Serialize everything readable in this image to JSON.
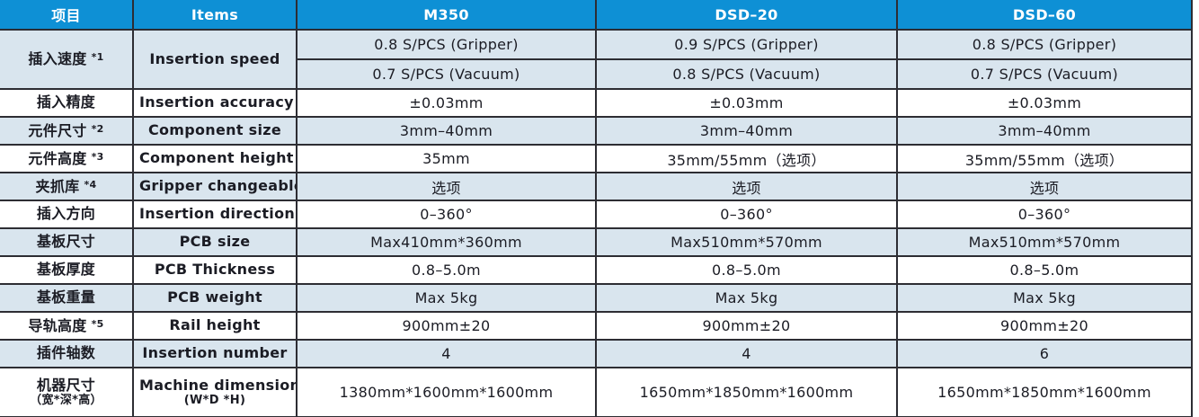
{
  "table": {
    "header": {
      "items_zh": "项目",
      "items_en": "Items",
      "models": [
        "M350",
        "DSD–20",
        "DSD–60"
      ]
    },
    "rows": [
      {
        "zh": "插入速度",
        "note": "*1",
        "en": "Insertion speed",
        "two_line_values": true,
        "values": [
          [
            "0.8 S/PCS (Gripper)",
            "0.7 S/PCS (Vacuum)"
          ],
          [
            "0.9 S/PCS (Gripper)",
            "0.8 S/PCS (Vacuum)"
          ],
          [
            "0.8 S/PCS (Gripper)",
            "0.7 S/PCS (Vacuum)"
          ]
        ]
      },
      {
        "zh": "插入精度",
        "en": "Insertion accuracy",
        "values": [
          "±0.03mm",
          "±0.03mm",
          "±0.03mm"
        ]
      },
      {
        "zh": "元件尺寸",
        "note": "*2",
        "en": "Component size",
        "values": [
          "3mm–40mm",
          "3mm–40mm",
          "3mm–40mm"
        ]
      },
      {
        "zh": "元件高度",
        "note": "*3",
        "en": "Component height",
        "values": [
          "35mm",
          "35mm/55mm（选项）",
          "35mm/55mm（选项）"
        ]
      },
      {
        "zh": "夹抓库",
        "note": "*4",
        "en": "Gripper changeable",
        "values": [
          "选项",
          "选项",
          "选项"
        ]
      },
      {
        "zh": "插入方向",
        "en": "Insertion direction",
        "values": [
          "0–360°",
          "0–360°",
          "0–360°"
        ]
      },
      {
        "zh": "基板尺寸",
        "en": "PCB size",
        "values": [
          "Max410mm*360mm",
          "Max510mm*570mm",
          "Max510mm*570mm"
        ]
      },
      {
        "zh": "基板厚度",
        "en": "PCB Thickness",
        "values": [
          "0.8–5.0m",
          "0.8–5.0m",
          "0.8–5.0m"
        ]
      },
      {
        "zh": "基板重量",
        "en": "PCB weight",
        "values": [
          "Max 5kg",
          "Max 5kg",
          "Max 5kg"
        ]
      },
      {
        "zh": "导轨高度",
        "note": "*5",
        "en": "Rail height",
        "values": [
          "900mm±20",
          "900mm±20",
          "900mm±20"
        ]
      },
      {
        "zh": "插件轴数",
        "en": "Insertion number",
        "values": [
          "4",
          "4",
          "6"
        ]
      },
      {
        "zh": "机器尺寸",
        "zh2": "（宽*深*高）",
        "en": "Machine dimension",
        "en2": "(W*D *H)",
        "values": [
          "1380mm*1600mm*1600mm",
          "1650mm*1850mm*1600mm",
          "1650mm*1850mm*1600mm"
        ]
      }
    ],
    "colors": {
      "header_bg": "#0e90d5",
      "row_alt_bg": "#d9e5ee",
      "row_white_bg": "#ffffff",
      "border": "#2d2d33",
      "text": "#1b1c24",
      "header_text": "#ffffff"
    }
  }
}
